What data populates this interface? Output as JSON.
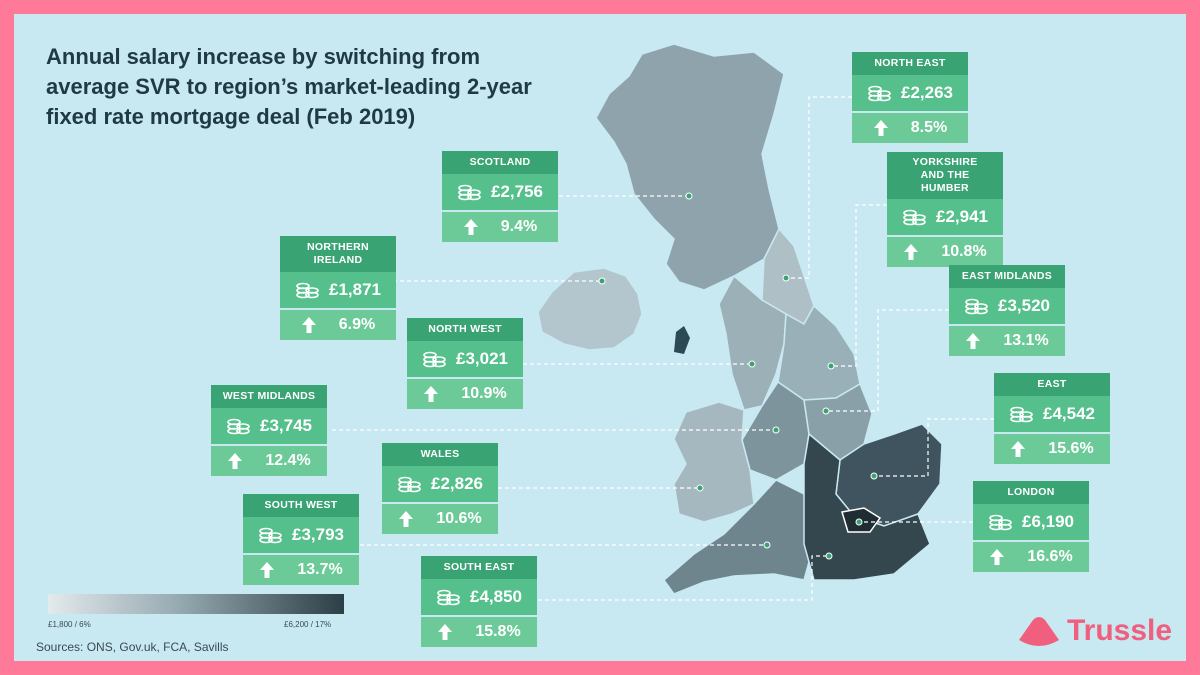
{
  "title": "Annual salary increase by switching from average SVR to region’s market-leading 2-year fixed rate mortgage deal (Feb 2019)",
  "regions": [
    {
      "key": "north_east",
      "name": "NORTH EAST",
      "amount": "£2,263",
      "percent": "8.5%"
    },
    {
      "key": "scotland",
      "name": "SCOTLAND",
      "amount": "£2,756",
      "percent": "9.4%"
    },
    {
      "key": "yorkshire",
      "name": "YORKSHIRE AND THE HUMBER",
      "amount": "£2,941",
      "percent": "10.8%"
    },
    {
      "key": "northern_ireland",
      "name": "NORTHERN IRELAND",
      "amount": "£1,871",
      "percent": "6.9%"
    },
    {
      "key": "east_midlands",
      "name": "EAST MIDLANDS",
      "amount": "£3,520",
      "percent": "13.1%"
    },
    {
      "key": "north_west",
      "name": "NORTH WEST",
      "amount": "£3,021",
      "percent": "10.9%"
    },
    {
      "key": "east",
      "name": "EAST",
      "amount": "£4,542",
      "percent": "15.6%"
    },
    {
      "key": "west_midlands",
      "name": "WEST MIDLANDS",
      "amount": "£3,745",
      "percent": "12.4%"
    },
    {
      "key": "wales",
      "name": "WALES",
      "amount": "£2,826",
      "percent": "10.6%"
    },
    {
      "key": "london",
      "name": "LONDON",
      "amount": "£6,190",
      "percent": "16.6%"
    },
    {
      "key": "south_west",
      "name": "SOUTH WEST",
      "amount": "£3,793",
      "percent": "13.7%"
    },
    {
      "key": "south_east",
      "name": "SOUTH EAST",
      "amount": "£4,850",
      "percent": "15.8%"
    }
  ],
  "legend": {
    "min_label": "£1,800 / 6%",
    "max_label": "£6,200 / 17%",
    "min_color": "#e3eaec",
    "max_color": "#2c3e46"
  },
  "sources": "Sources: ONS, Gov.uk, FCA, Savills",
  "logo_text": "Trussle",
  "colors": {
    "frame": "#ff7a99",
    "background": "#c8e8f2",
    "card_header": "#3aa374",
    "card_amount": "#55c08c",
    "card_percent": "#6cca98",
    "logo": "#f0607e"
  }
}
